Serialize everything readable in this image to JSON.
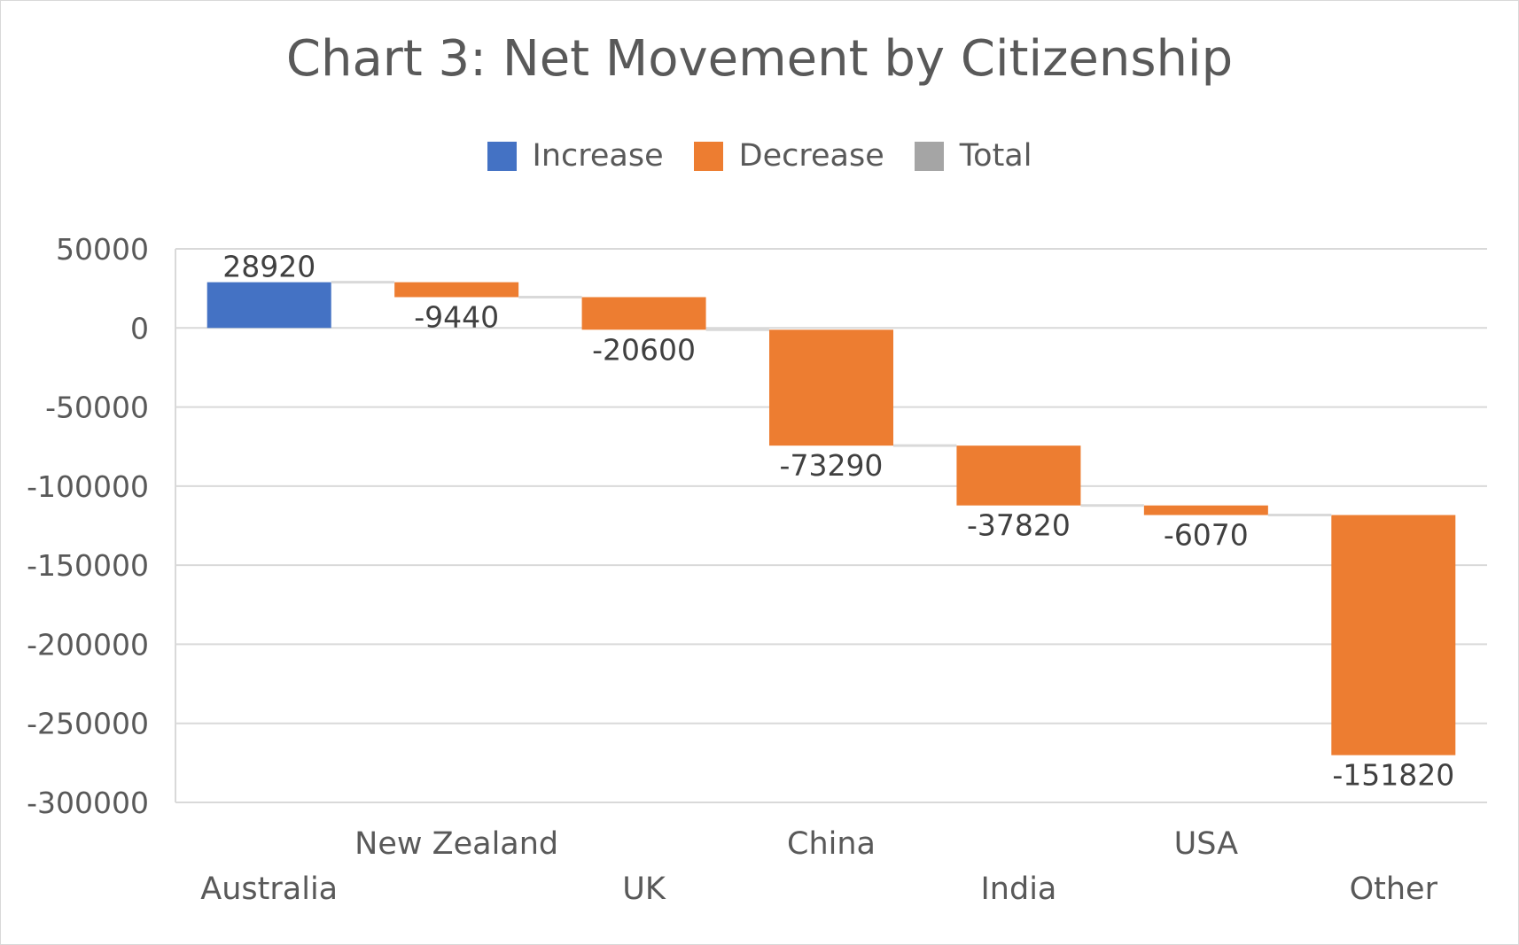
{
  "chart_data": {
    "type": "bar",
    "subtype": "waterfall",
    "title": "Chart 3: Net Movement by Citizenship",
    "xlabel": "",
    "ylabel": "",
    "ylim": [
      -300000,
      50000
    ],
    "yticks": [
      50000,
      0,
      -50000,
      -100000,
      -150000,
      -200000,
      -250000,
      -300000
    ],
    "categories": [
      "Australia",
      "New Zealand",
      "UK",
      "China",
      "India",
      "USA",
      "Other"
    ],
    "values": [
      28920,
      -9440,
      -20600,
      -73290,
      -37820,
      -6070,
      -151820
    ],
    "legend": [
      {
        "name": "Increase",
        "color": "#4472C4"
      },
      {
        "name": "Decrease",
        "color": "#ED7D31"
      },
      {
        "name": "Total",
        "color": "#A5A5A5"
      }
    ],
    "legend_position": "top",
    "grid": true,
    "connector_lines": true
  }
}
